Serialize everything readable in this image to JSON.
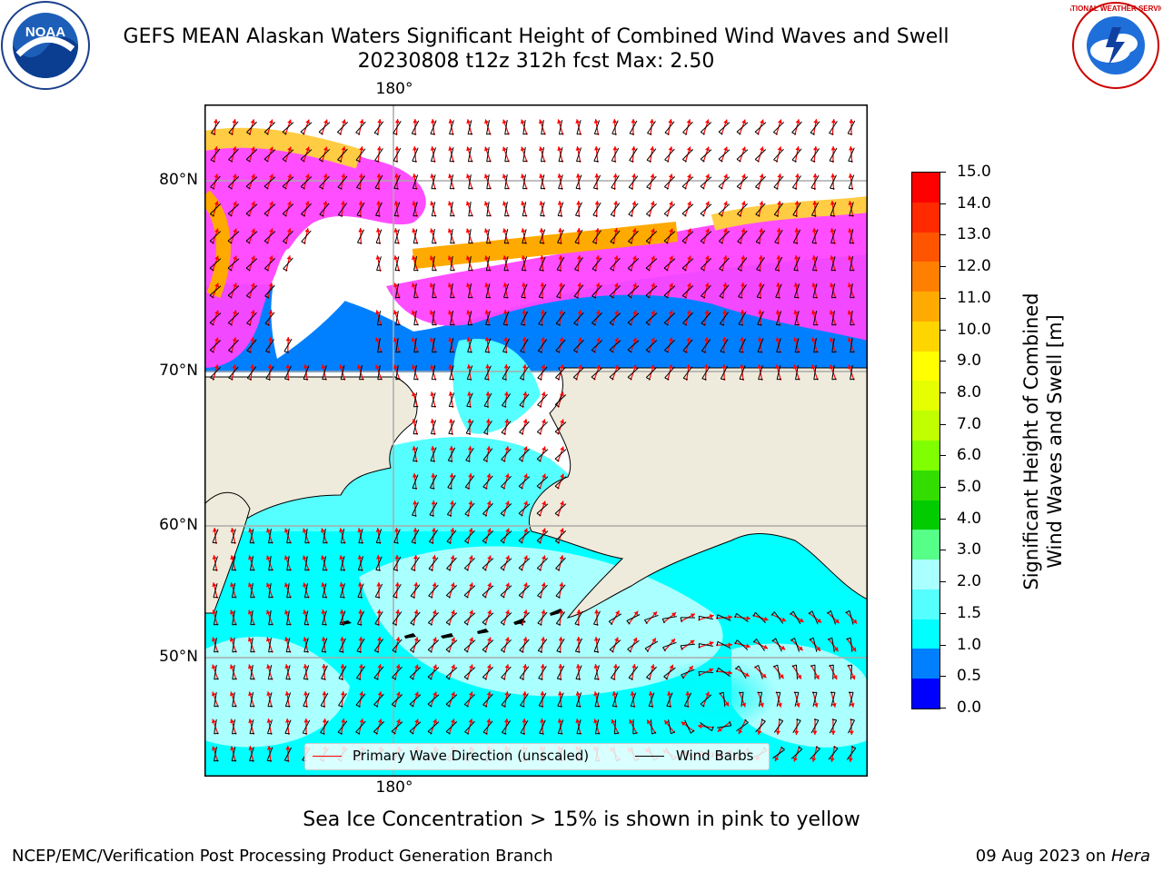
{
  "title": {
    "line1": "GEFS MEAN Alaskan Waters Significant Height of Combined Wind Waves and Swell",
    "line2": "20230808 t12z 312h fcst   Max: 2.50"
  },
  "logos": {
    "left": "NOAA",
    "right": "NATIONAL WEATHER SERVICE"
  },
  "map": {
    "lon_label_top": "180°",
    "lon_label_bottom": "180°",
    "lat_labels": [
      "80°N",
      "70°N",
      "60°N",
      "50°N"
    ]
  },
  "colorbar": {
    "title_line1": "Significant Height of Combined",
    "title_line2": "Wind Waves and Swell [m]",
    "ticks": [
      "15.0",
      "14.0",
      "13.0",
      "12.0",
      "11.0",
      "10.0",
      "9.0",
      "8.0",
      "7.0",
      "6.0",
      "5.0",
      "4.0",
      "3.0",
      "2.0",
      "1.5",
      "1.0",
      "0.5",
      "0.0"
    ],
    "colors_top_to_bottom": [
      "#ff0000",
      "#ff2a00",
      "#ff5500",
      "#ff8000",
      "#ffaa00",
      "#ffd500",
      "#ffff00",
      "#e5ff00",
      "#bfff00",
      "#80ff00",
      "#33dd00",
      "#00cc00",
      "#55ff88",
      "#aaffff",
      "#55ffff",
      "#00ffff",
      "#0080ff",
      "#0000ff"
    ]
  },
  "legend": {
    "wave_label": "Primary Wave Direction (unscaled)",
    "wind_label": "Wind Barbs",
    "wave_color": "#ff0000",
    "wind_color": "#000000"
  },
  "note": "Sea Ice Concentration > 15% is shown in pink to yellow",
  "footer": {
    "left": "NCEP/EMC/Verification Post Processing Product Generation Branch",
    "date": "09 Aug 2023 on ",
    "machine": "Hera"
  }
}
